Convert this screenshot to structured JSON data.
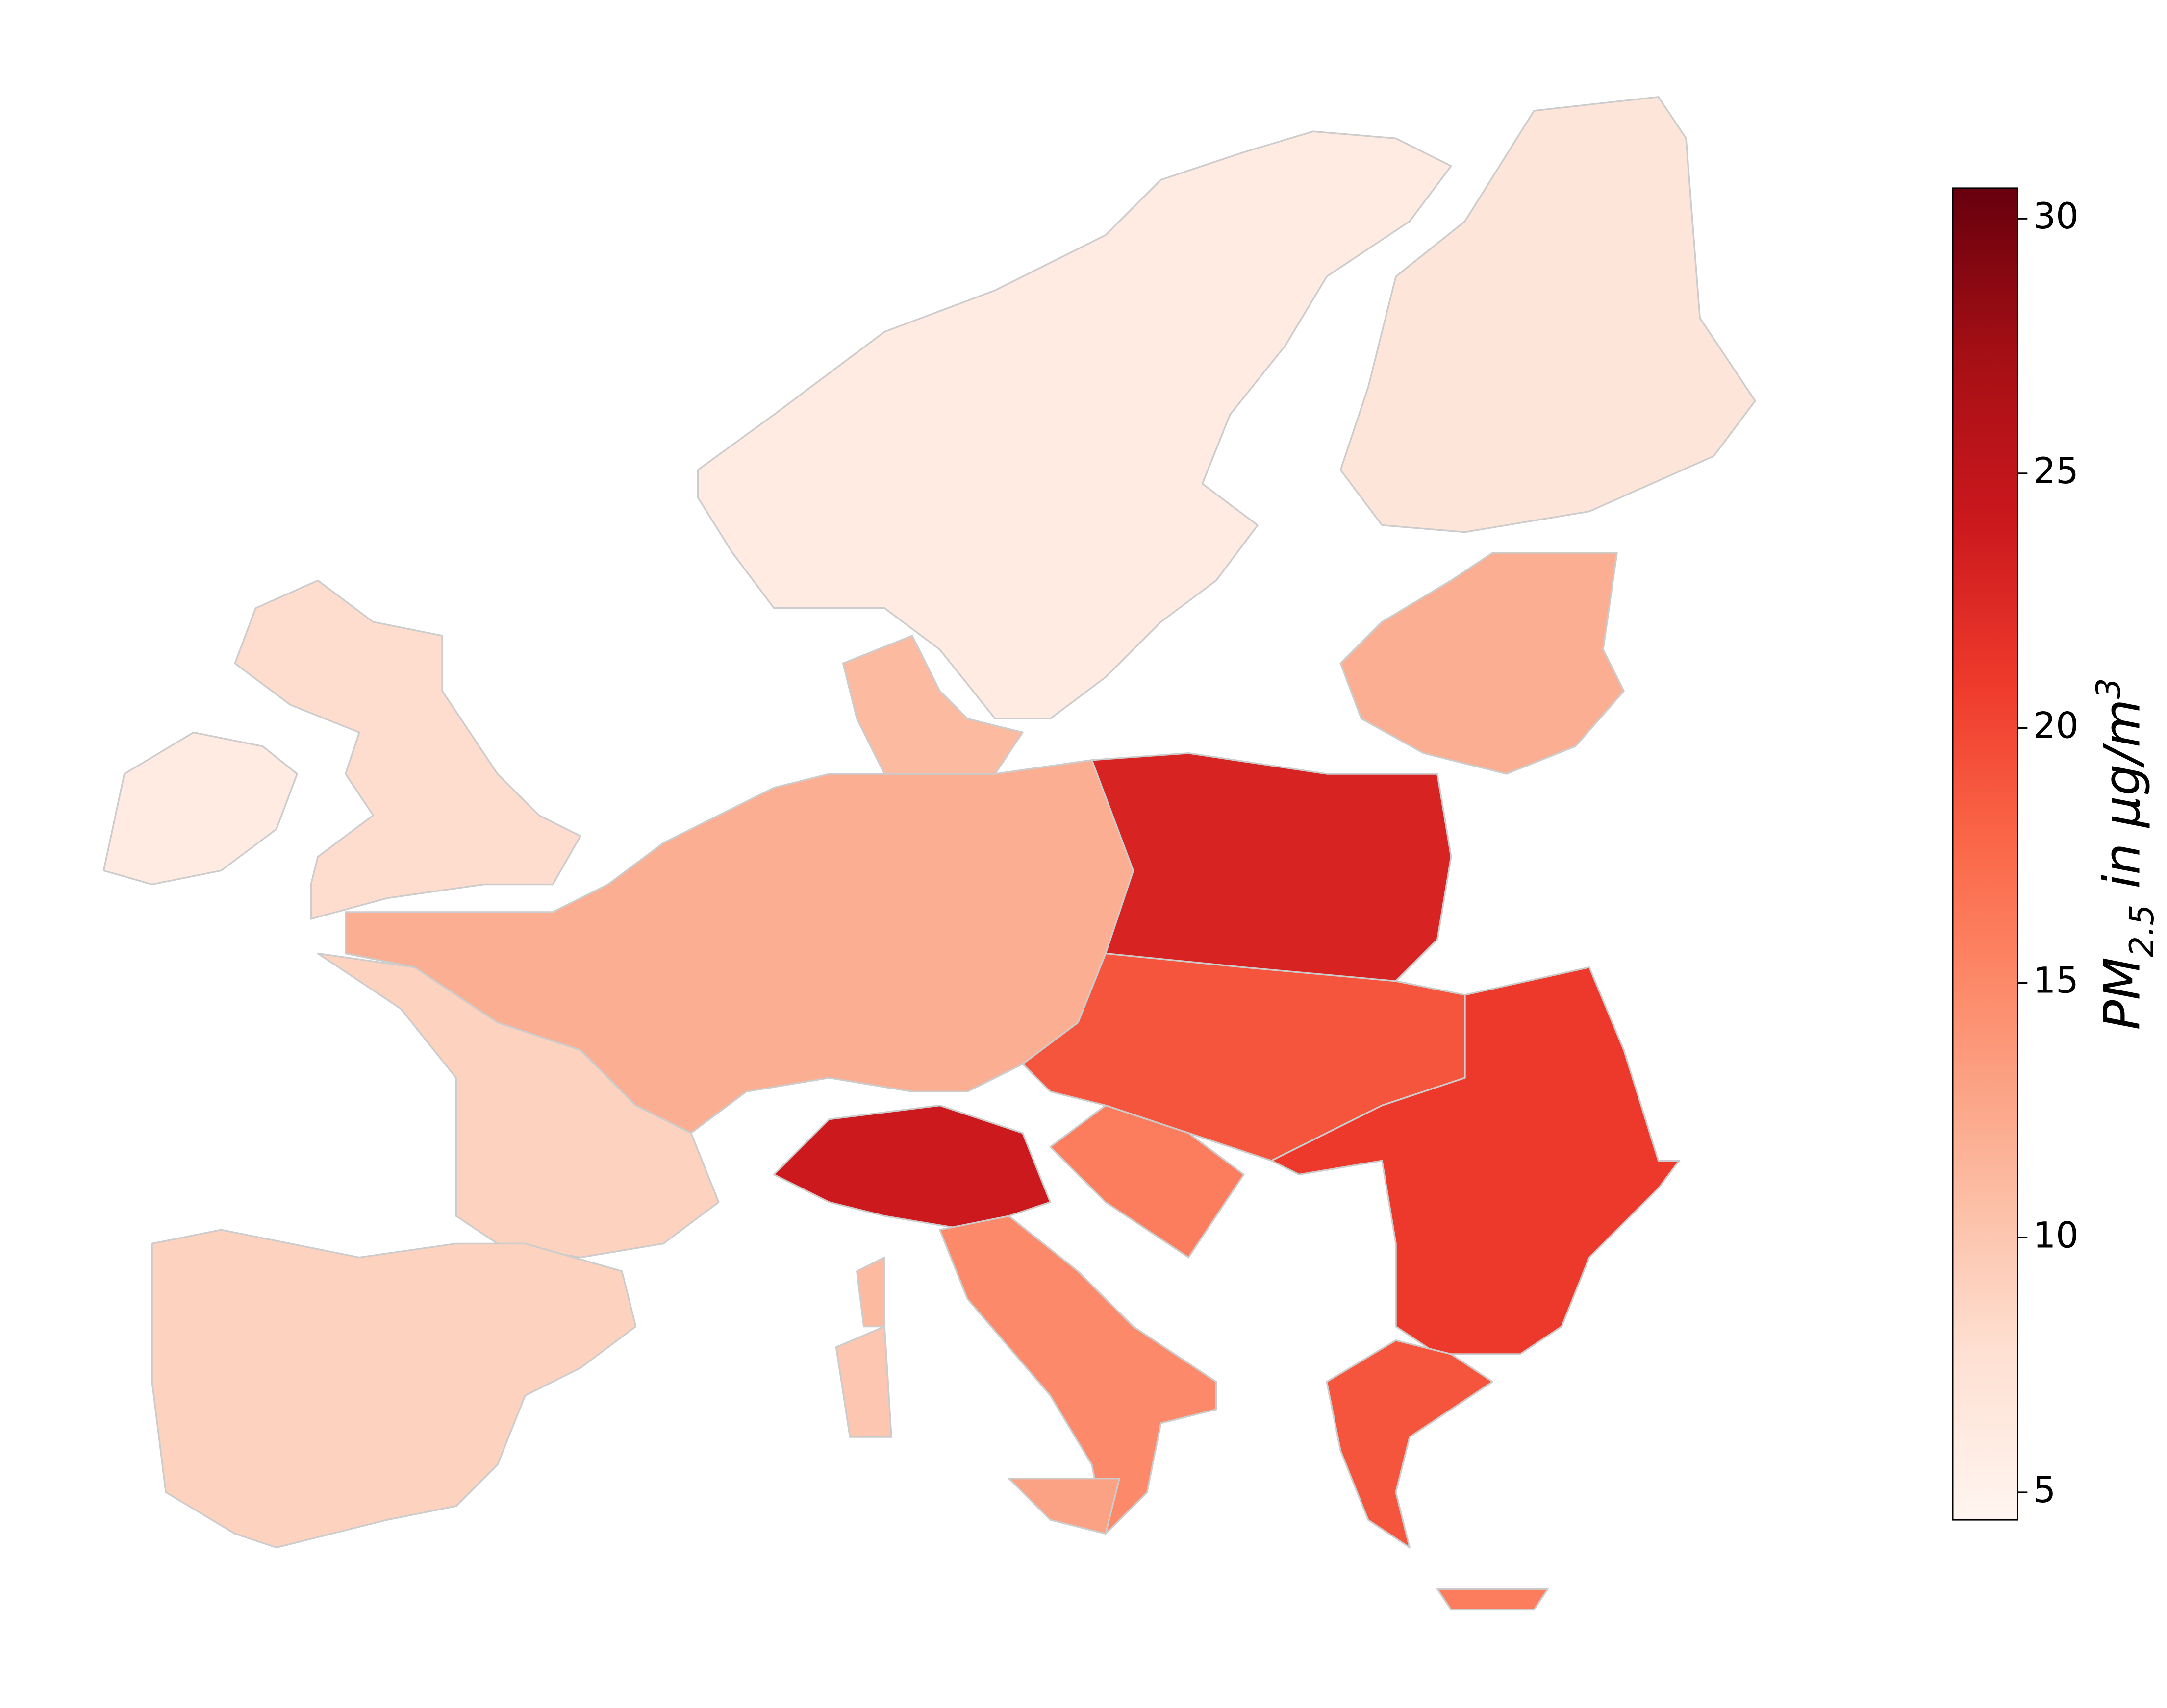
{
  "chart_data": {
    "type": "choropleth",
    "colorbar_label": {
      "base": "PM",
      "sub": "2.5",
      "mid": " in µg/m",
      "sup": "3"
    },
    "colormap": [
      "#fff5f0",
      "#fee0d2",
      "#fcbba1",
      "#fc9272",
      "#fb6a4a",
      "#ef3b2c",
      "#cb181d",
      "#a50f15",
      "#67000d"
    ],
    "clim": [
      4.46,
      30.6
    ],
    "cticks": [
      5,
      10,
      15,
      20,
      25,
      30
    ],
    "border_color": "#cccccc",
    "regions": {
      "values": [
        6,
        7,
        12,
        6,
        8,
        11,
        12,
        9,
        9,
        23,
        19,
        24,
        15,
        21,
        19,
        16,
        13,
        10,
        11,
        16
      ]
    }
  }
}
